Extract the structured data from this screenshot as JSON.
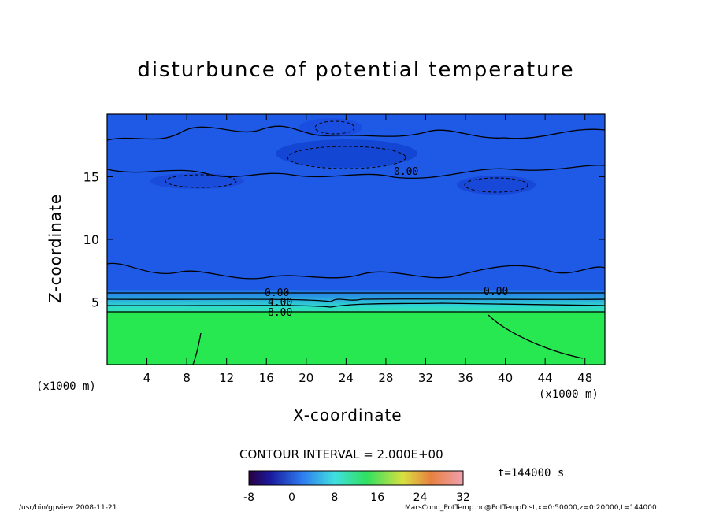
{
  "chart_data": {
    "type": "heatmap",
    "title": "disturbunce of potential temperature",
    "xlabel": "X-coordinate",
    "ylabel": "Z-coordinate",
    "x_unit": "(x1000 m)",
    "xlim": [
      0,
      50
    ],
    "ylim": [
      0,
      20
    ],
    "x_ticks": [
      4,
      8,
      12,
      16,
      20,
      24,
      28,
      32,
      36,
      40,
      44,
      48
    ],
    "y_ticks": [
      5,
      10,
      15
    ],
    "contour_labels": [
      "0.00",
      "4.00",
      "8.00",
      "0.00",
      "0.00"
    ],
    "contour_interval_text": "CONTOUR INTERVAL = 2.000E+00",
    "colorbar": {
      "ticks": [
        -8,
        0,
        8,
        16,
        24,
        32
      ],
      "range": [
        -8,
        32
      ]
    },
    "time_text": "t=144000 s",
    "value_regions": [
      {
        "z_range": [
          0,
          4
        ],
        "value_approx": 12
      },
      {
        "z_range": [
          4,
          6
        ],
        "value_approx": 4
      },
      {
        "z_range": [
          6,
          20
        ],
        "value_approx": -1
      }
    ]
  },
  "footer": {
    "left": "/usr/bin/gpview  2008-11-21",
    "right": "MarsCond_PotTemp.nc@PotTempDist,x=0:50000,z=0:20000,t=144000"
  },
  "colors": {
    "upper_blue": "#1f5ae6",
    "deep_blue": "#1040d0",
    "band_cyan": "#28c8d8",
    "lower_green": "#27e850"
  }
}
